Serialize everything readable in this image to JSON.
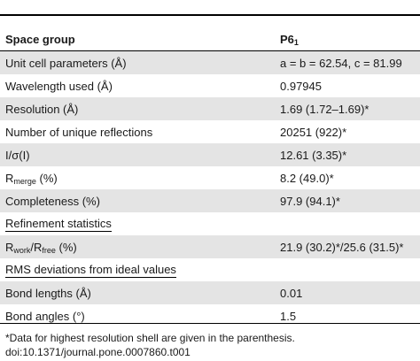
{
  "table": {
    "header": {
      "label": "Space group",
      "value": "P6",
      "value_sub": "1"
    },
    "rows": [
      {
        "label": "Unit cell parameters (Å)",
        "value": "a = b = 62.54, c = 81.99"
      },
      {
        "label": "Wavelength used (Å)",
        "value": "0.97945"
      },
      {
        "label": "Resolution (Å)",
        "value": "1.69 (1.72–1.69)*"
      },
      {
        "label": "Number of unique reflections",
        "value": "20251 (922)*"
      },
      {
        "label": "I/σ(I)",
        "value": "12.61 (3.35)*"
      },
      {
        "label_pre": "R",
        "label_sub": "merge",
        "label_post": " (%)",
        "value": "8.2 (49.0)*"
      },
      {
        "label": "Completeness (%)",
        "value": "97.9 (94.1)*"
      },
      {
        "section": "Refinement statistics"
      },
      {
        "label_pre": "R",
        "label_sub": "work",
        "label_mid": "/R",
        "label_sub2": "free",
        "label_post": " (%)",
        "value": "21.9 (30.2)*/25.6 (31.5)*"
      },
      {
        "section": "RMS deviations from ideal values"
      },
      {
        "label": "Bond lengths (Å)",
        "value": "0.01"
      },
      {
        "label": "Bond angles (°)",
        "value": "1.5"
      }
    ]
  },
  "footnote": {
    "note": "*Data for highest resolution shell are given in the parenthesis.",
    "doi": "doi:10.1371/journal.pone.0007860.t001"
  }
}
